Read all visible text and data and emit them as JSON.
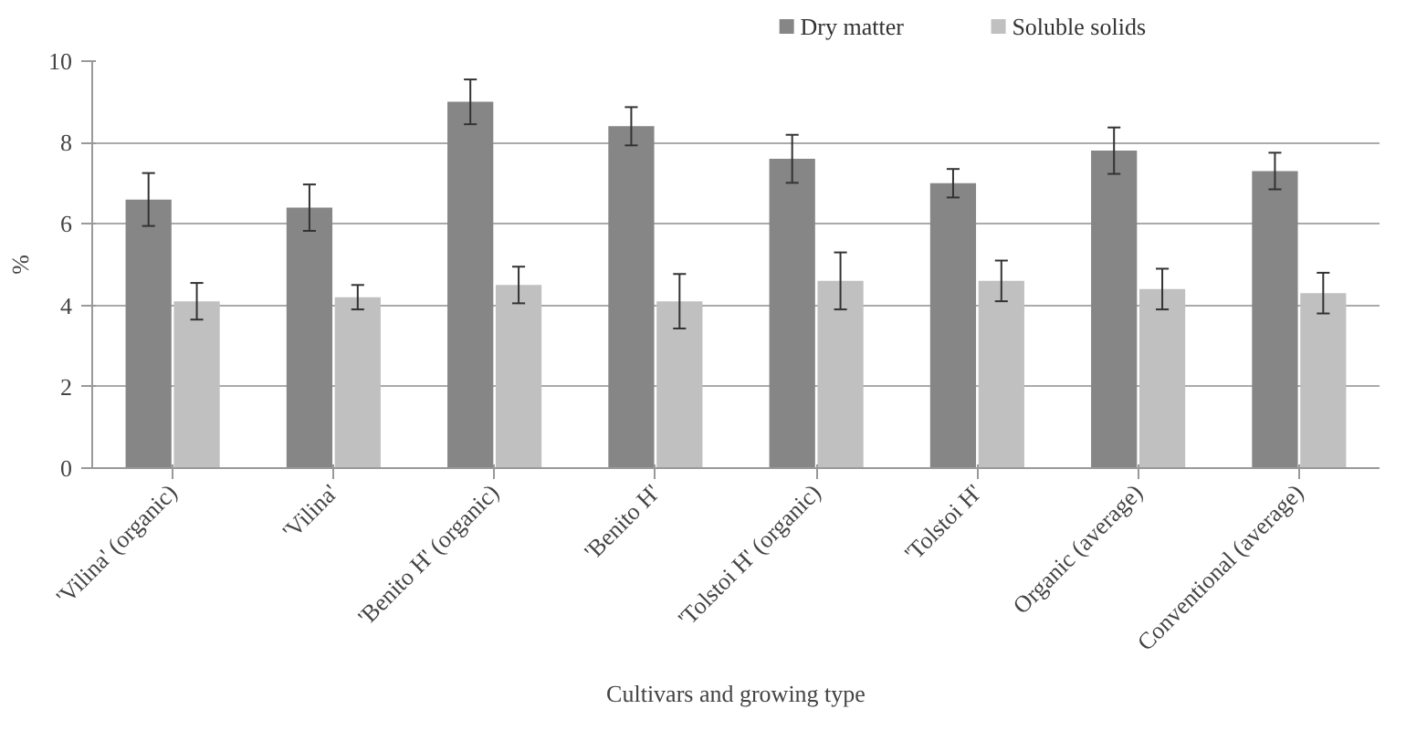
{
  "chart_data": {
    "type": "bar",
    "xlabel": "Cultivars and growing type",
    "ylabel": "%",
    "categories": [
      "'Vilina' (organic)",
      "'Vilina'",
      "'Benito H' (organic)",
      "'Benito H'",
      "'Tolstoi H' (organic)",
      "'Tolstoi H'",
      "Organic (average)",
      "Conventional (average)"
    ],
    "series": [
      {
        "name": "Dry matter",
        "color": "#868686",
        "values": [
          6.6,
          6.4,
          9.0,
          8.4,
          7.6,
          7.0,
          7.8,
          7.3
        ],
        "errors": [
          0.65,
          0.57,
          0.55,
          0.47,
          0.59,
          0.35,
          0.57,
          0.45
        ]
      },
      {
        "name": "Soluble solids",
        "color": "#c0c0c0",
        "values": [
          4.1,
          4.2,
          4.5,
          4.1,
          4.6,
          4.6,
          4.4,
          4.3
        ],
        "errors": [
          0.45,
          0.3,
          0.45,
          0.67,
          0.7,
          0.5,
          0.5,
          0.5
        ]
      }
    ],
    "ylim": [
      0,
      10
    ],
    "yticks": [
      0,
      2,
      4,
      6,
      8,
      10
    ],
    "grid": "y",
    "legend": "top"
  }
}
